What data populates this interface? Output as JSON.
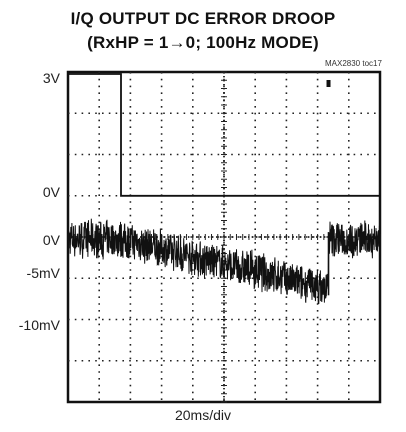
{
  "chart_data": {
    "type": "line",
    "title": "I/Q OUTPUT DC ERROR DROOP",
    "subtitle": "(RxHP = 1→0; 100Hz MODE)",
    "tag": "MAX2830 toc17",
    "xlabel": "20ms/div",
    "x_unit": "ms",
    "xlim": [
      0,
      200
    ],
    "divisions": {
      "x": 10,
      "y": 8
    },
    "y_labels": [
      "3V",
      "0V",
      "0V",
      "-5mV",
      "-10mV"
    ],
    "grid": true,
    "series": [
      {
        "trace": "RxHP control",
        "unit": "V",
        "x": [
          0,
          34,
          34,
          200
        ],
        "values": [
          3,
          3,
          0,
          0
        ]
      },
      {
        "trace": "I/Q output DC error",
        "unit": "mV",
        "x": [
          0,
          20,
          34,
          60,
          80,
          100,
          120,
          140,
          155,
          167,
          167,
          180,
          200
        ],
        "values": [
          0,
          0,
          0,
          -1.1,
          -2.0,
          -2.9,
          -3.7,
          -4.6,
          -5.3,
          -5.9,
          0,
          0,
          0
        ]
      }
    ]
  }
}
